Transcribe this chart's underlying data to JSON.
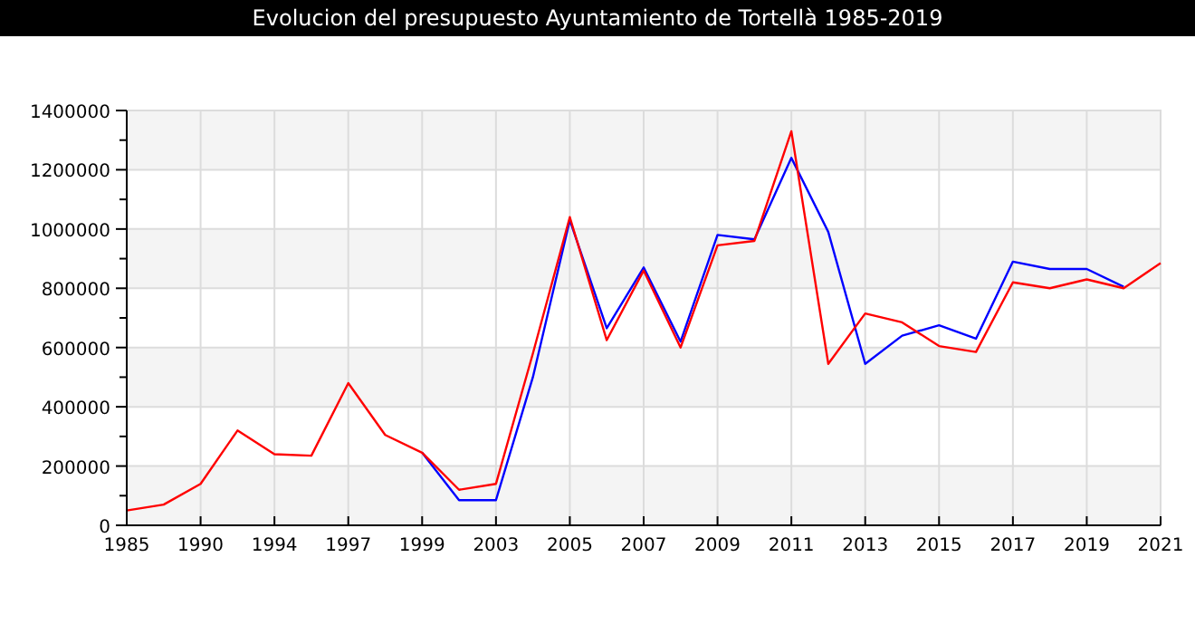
{
  "chart_data": {
    "type": "line",
    "title": "Evolucion del presupuesto Ayuntamiento de Tortellà 1985-2019",
    "categories": [
      "1985",
      null,
      "1990",
      null,
      "1994",
      null,
      "1997",
      null,
      "1999",
      null,
      "2003",
      null,
      "2005",
      null,
      "2007",
      null,
      "2009",
      null,
      "2011",
      null,
      "2013",
      null,
      "2015",
      null,
      "2017",
      null,
      "2019",
      null,
      "2021"
    ],
    "series": [
      {
        "color": "#0000ff",
        "values": [
          null,
          null,
          null,
          null,
          null,
          null,
          null,
          null,
          245000,
          85000,
          85000,
          500000,
          1030000,
          665000,
          870000,
          620000,
          980000,
          965000,
          1240000,
          990000,
          545000,
          640000,
          675000,
          630000,
          890000,
          865000,
          865000,
          805000,
          null
        ]
      },
      {
        "color": "#ff0000",
        "values": [
          50000,
          70000,
          140000,
          320000,
          240000,
          235000,
          480000,
          305000,
          245000,
          120000,
          140000,
          580000,
          1040000,
          625000,
          860000,
          600000,
          945000,
          960000,
          1330000,
          545000,
          715000,
          685000,
          605000,
          585000,
          820000,
          800000,
          830000,
          800000,
          885000
        ]
      }
    ],
    "ylim": [
      0,
      1400000
    ],
    "yticks": [
      0,
      {
        "value": 100000,
        "label": null
      },
      200000,
      {
        "value": 300000,
        "label": null
      },
      400000,
      {
        "value": 500000,
        "label": null
      },
      600000,
      {
        "value": 700000,
        "label": null
      },
      800000,
      {
        "value": 900000,
        "label": null
      },
      1000000,
      {
        "value": 1100000,
        "label": null
      },
      1200000,
      {
        "value": 1300000,
        "label": null
      },
      1400000
    ],
    "grid": true
  }
}
